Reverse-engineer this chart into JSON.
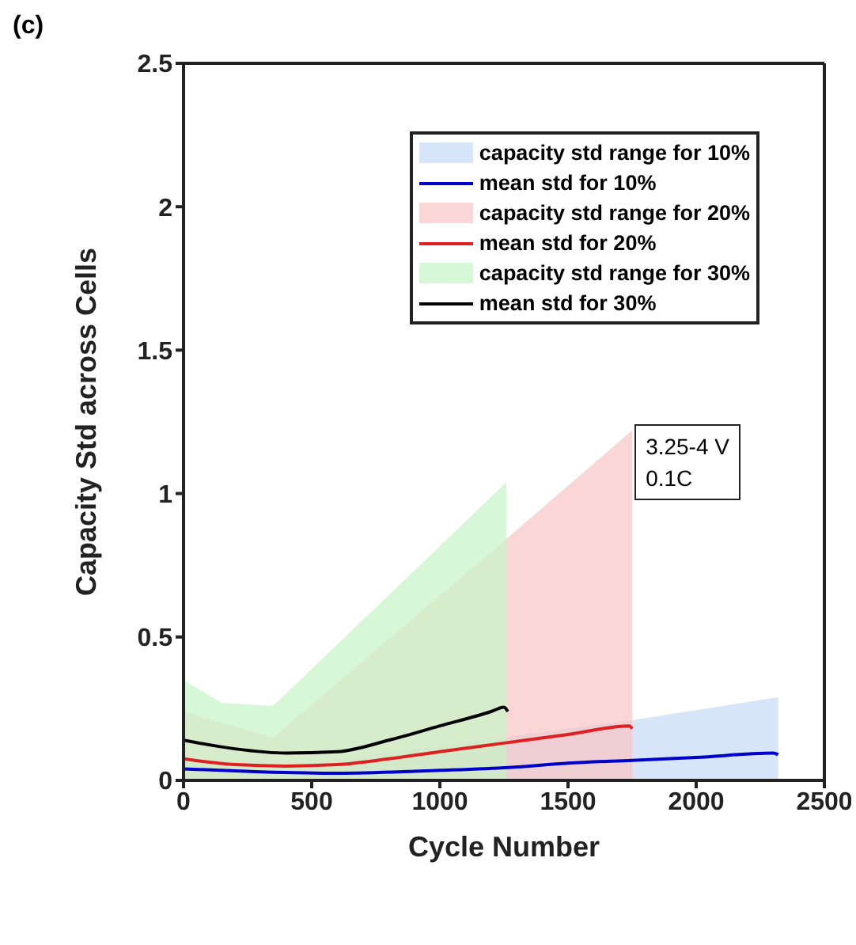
{
  "chart_data": {
    "type": "line",
    "title": "(c)",
    "xlabel": "Cycle Number",
    "ylabel": "Capacity Std across Cells",
    "xlim": [
      0,
      2500
    ],
    "xticks": [
      0,
      500,
      1000,
      1500,
      2000,
      2500
    ],
    "ylim": [
      0,
      2.5
    ],
    "yticks": [
      0,
      0.5,
      1,
      1.5,
      2,
      2.5
    ],
    "legend": "top right",
    "annotations": [
      "3.25-4 V",
      "0.1C"
    ],
    "series": [
      {
        "name": "capacity std range for 10%",
        "type": "area",
        "color": "#c4dcf5",
        "x": [
          0,
          400,
          1000,
          1750,
          2320
        ],
        "values": [
          0.08,
          0.05,
          0.12,
          0.21,
          0.29
        ]
      },
      {
        "name": "mean std for 10%",
        "color": "#0000cc",
        "x": [
          0,
          300,
          600,
          1000,
          1270,
          1500,
          1750,
          2000,
          2300,
          2320
        ],
        "values": [
          0.04,
          0.03,
          0.025,
          0.035,
          0.045,
          0.06,
          0.07,
          0.08,
          0.095,
          0.09
        ]
      },
      {
        "name": "capacity std range for 20%",
        "type": "area",
        "color": "#f9c4c4",
        "x": [
          0,
          150,
          350,
          1270,
          1750
        ],
        "values": [
          0.24,
          0.2,
          0.15,
          0.85,
          1.22
        ]
      },
      {
        "name": "mean std for 20%",
        "color": "#e02020",
        "x": [
          0,
          200,
          400,
          600,
          800,
          1000,
          1250,
          1500,
          1740,
          1750
        ],
        "values": [
          0.075,
          0.055,
          0.05,
          0.055,
          0.075,
          0.1,
          0.13,
          0.16,
          0.19,
          0.18
        ]
      },
      {
        "name": "capacity std range for 30%",
        "type": "area",
        "color": "#c6f5c6",
        "x": [
          0,
          150,
          350,
          1260
        ],
        "values": [
          0.35,
          0.27,
          0.26,
          1.04
        ]
      },
      {
        "name": "mean std for 30%",
        "color": "#000000",
        "x": [
          0,
          200,
          400,
          600,
          800,
          1000,
          1200,
          1250,
          1265
        ],
        "values": [
          0.14,
          0.11,
          0.095,
          0.1,
          0.14,
          0.19,
          0.24,
          0.255,
          0.24
        ]
      }
    ]
  }
}
